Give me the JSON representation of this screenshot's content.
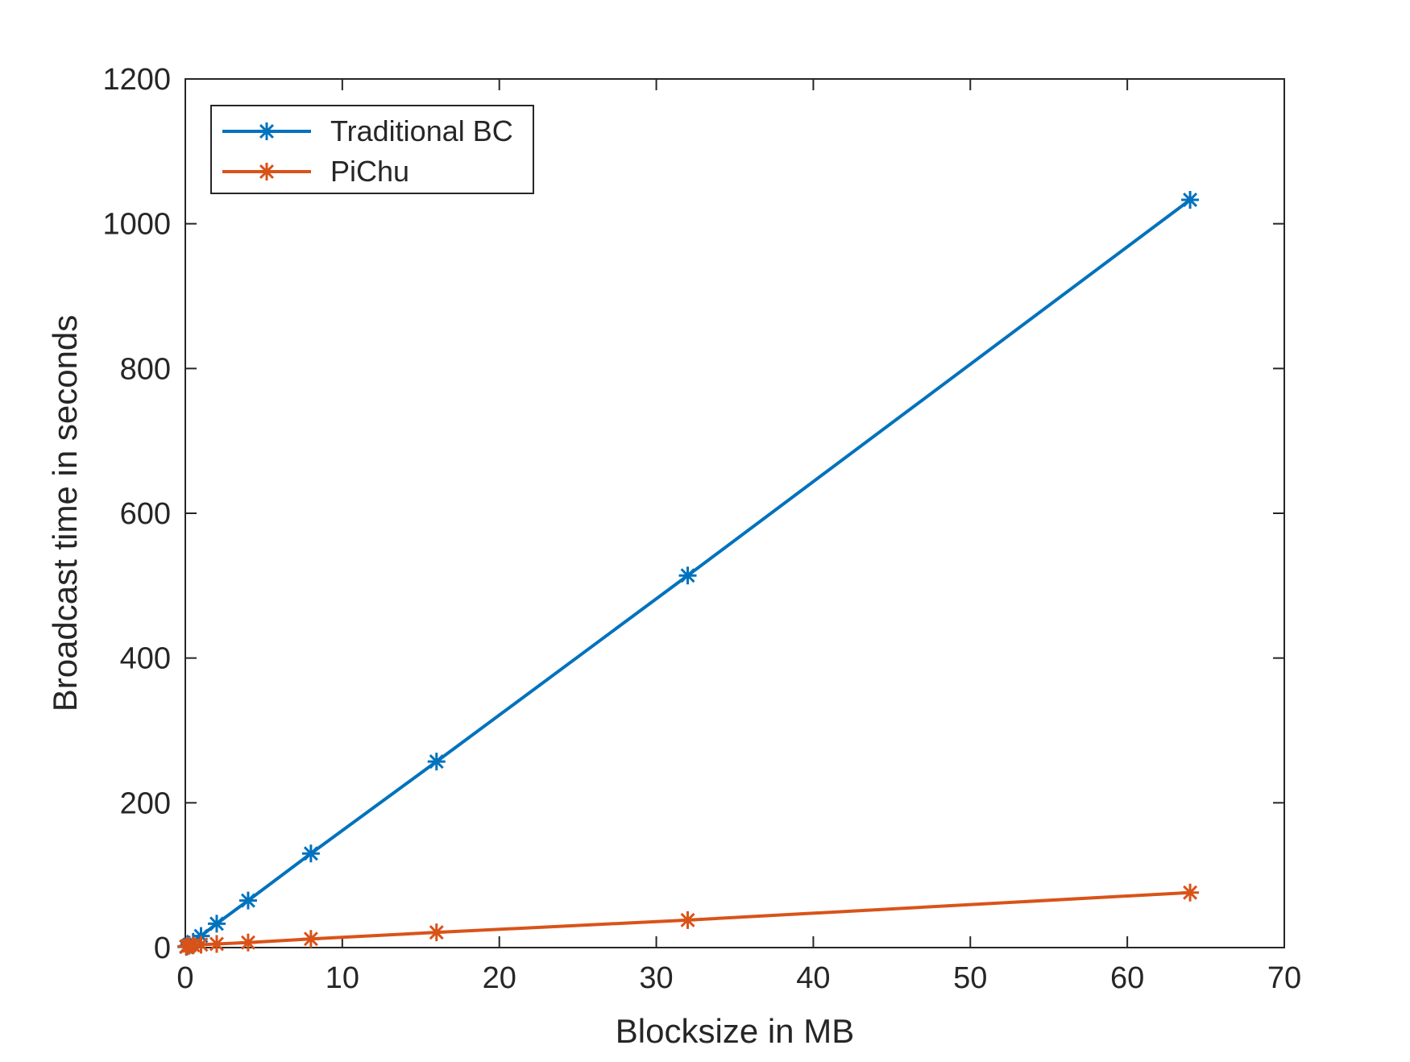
{
  "chart_data": {
    "type": "line",
    "title": "",
    "xlabel": "Blocksize in MB",
    "ylabel": "Broadcast time in seconds",
    "xlim": [
      0,
      70
    ],
    "ylim": [
      0,
      1200
    ],
    "xticks": [
      0,
      10,
      20,
      30,
      40,
      50,
      60,
      70
    ],
    "yticks": [
      0,
      200,
      400,
      600,
      800,
      1000,
      1200
    ],
    "xtick_labels": [
      "0",
      "10",
      "20",
      "30",
      "40",
      "50",
      "60",
      "70"
    ],
    "ytick_labels": [
      "0",
      "200",
      "400",
      "600",
      "800",
      "1000",
      "1200"
    ],
    "grid": false,
    "legend_position": "top-left",
    "series": [
      {
        "name": "Traditional BC",
        "color": "#0072BD",
        "marker": "asterisk",
        "x": [
          0.0625,
          0.125,
          0.25,
          0.5,
          1,
          2,
          4,
          8,
          16,
          32,
          64
        ],
        "y": [
          1,
          2,
          4,
          8,
          16,
          33,
          65,
          130,
          257,
          514,
          1033
        ]
      },
      {
        "name": "PiChu",
        "color": "#D95319",
        "marker": "asterisk",
        "x": [
          0.0625,
          0.125,
          0.25,
          0.5,
          1,
          2,
          4,
          8,
          16,
          32,
          64
        ],
        "y": [
          1.5,
          2,
          2.5,
          3,
          4,
          5,
          7,
          12,
          21,
          38,
          76
        ]
      }
    ]
  }
}
